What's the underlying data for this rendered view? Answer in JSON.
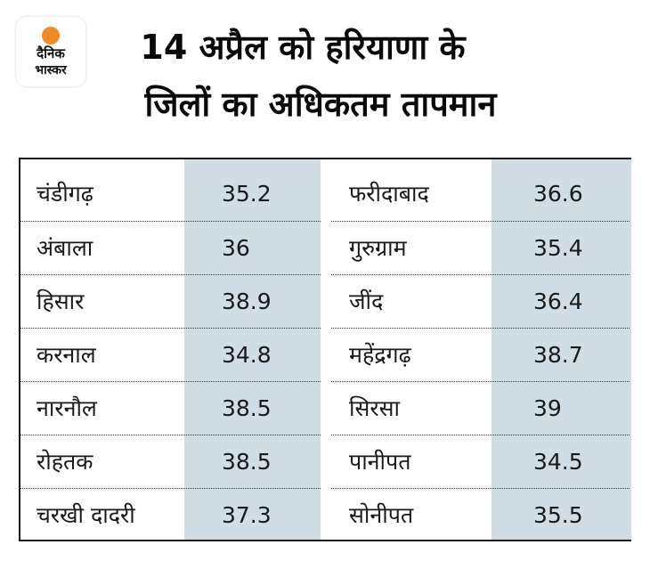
{
  "logo": {
    "line1": "दैनिक",
    "line2": "भास्कर",
    "sun_color": "#f08a24"
  },
  "title": {
    "line1": "14 अप्रैल को हरियाणा के",
    "line2": "जिलों का अधिकतम तापमान"
  },
  "colors": {
    "shaded_column": "#d0dde4",
    "border": "#1a1a1a"
  },
  "table": {
    "rows": [
      {
        "district_a": "चंडीगढ़",
        "temp_a": "35.2",
        "district_b": "फरीदाबाद",
        "temp_b": "36.6"
      },
      {
        "district_a": "अंबाला",
        "temp_a": "36",
        "district_b": "गुरुग्राम",
        "temp_b": "35.4"
      },
      {
        "district_a": "हिसार",
        "temp_a": "38.9",
        "district_b": "जींद",
        "temp_b": "36.4"
      },
      {
        "district_a": "करनाल",
        "temp_a": "34.8",
        "district_b": "महेंद्रगढ़",
        "temp_b": "38.7"
      },
      {
        "district_a": "नारनौल",
        "temp_a": "38.5",
        "district_b": "सिरसा",
        "temp_b": "39"
      },
      {
        "district_a": "रोहतक",
        "temp_a": "38.5",
        "district_b": "पानीपत",
        "temp_b": "34.5"
      },
      {
        "district_a": "चरखी दादरी",
        "temp_a": "37.3",
        "district_b": "सोनीपत",
        "temp_b": "35.5"
      }
    ]
  }
}
